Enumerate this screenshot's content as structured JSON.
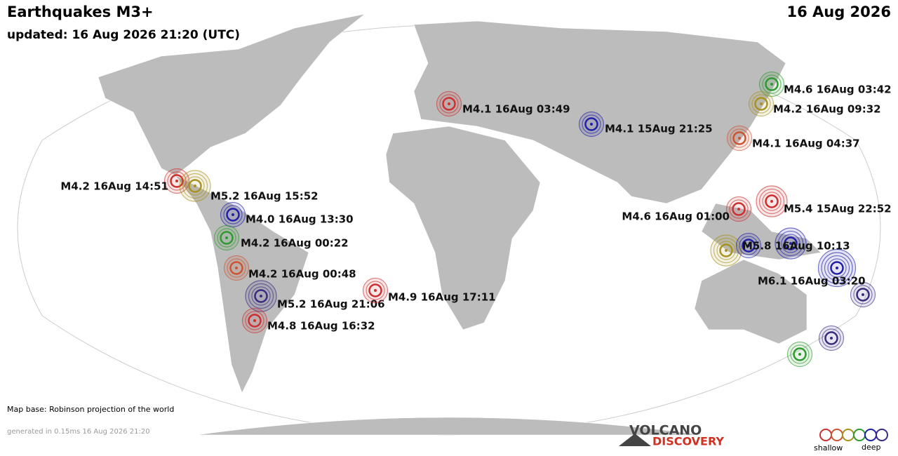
{
  "header": {
    "title": "Earthquakes M3+",
    "updated": "updated: 16 Aug 2026 21:20 (UTC)",
    "date": "16 Aug 2026"
  },
  "quakes": [
    {
      "label": "M4.6 16Aug 03:42",
      "color": "#2f9a2f"
    },
    {
      "label": "M4.2 16Aug 09:32",
      "color": "#a89220"
    },
    {
      "label": "M4.1 15Aug 21:25",
      "color": "#2020a8"
    },
    {
      "label": "M4.1 16Aug 04:37",
      "color": "#cc5530"
    },
    {
      "label": "M4.1 16Aug 03:49",
      "color": "#cc3030"
    },
    {
      "label": "M4.2 16Aug 14:51",
      "color": "#cc3030"
    },
    {
      "label": "M5.2 16Aug 15:52",
      "color": "#a89220"
    },
    {
      "label": "M4.0 16Aug 13:30",
      "color": "#2020a8"
    },
    {
      "label": "M4.2 16Aug 00:22",
      "color": "#2f9a2f"
    },
    {
      "label": "M4.2 16Aug 00:48",
      "color": "#cc5530"
    },
    {
      "label": "M5.2 16Aug 21:06",
      "color": "#3a2a80"
    },
    {
      "label": "M4.8 16Aug 16:32",
      "color": "#cc3030"
    },
    {
      "label": "M4.9 16Aug 17:11",
      "color": "#cc3030"
    },
    {
      "label": "M4.6 16Aug 01:00",
      "color": "#cc3030"
    },
    {
      "label": "M5.4 15Aug 22:52",
      "color": "#cc3030"
    },
    {
      "label": "M5.8 16Aug 10:13",
      "color": "#2020a8"
    },
    {
      "label": "M6.1 16Aug 03:20",
      "color": "#2020a8"
    }
  ],
  "footer": {
    "map_base": "Map base: Robinson projection of the world",
    "generated": "generated in 0.15ms 16 Aug 2026 21:20"
  },
  "logo": {
    "line1": "VOLCANO",
    "line2": "DISCOVERY"
  },
  "legend": {
    "shallow": "shallow",
    "deep": "deep"
  }
}
